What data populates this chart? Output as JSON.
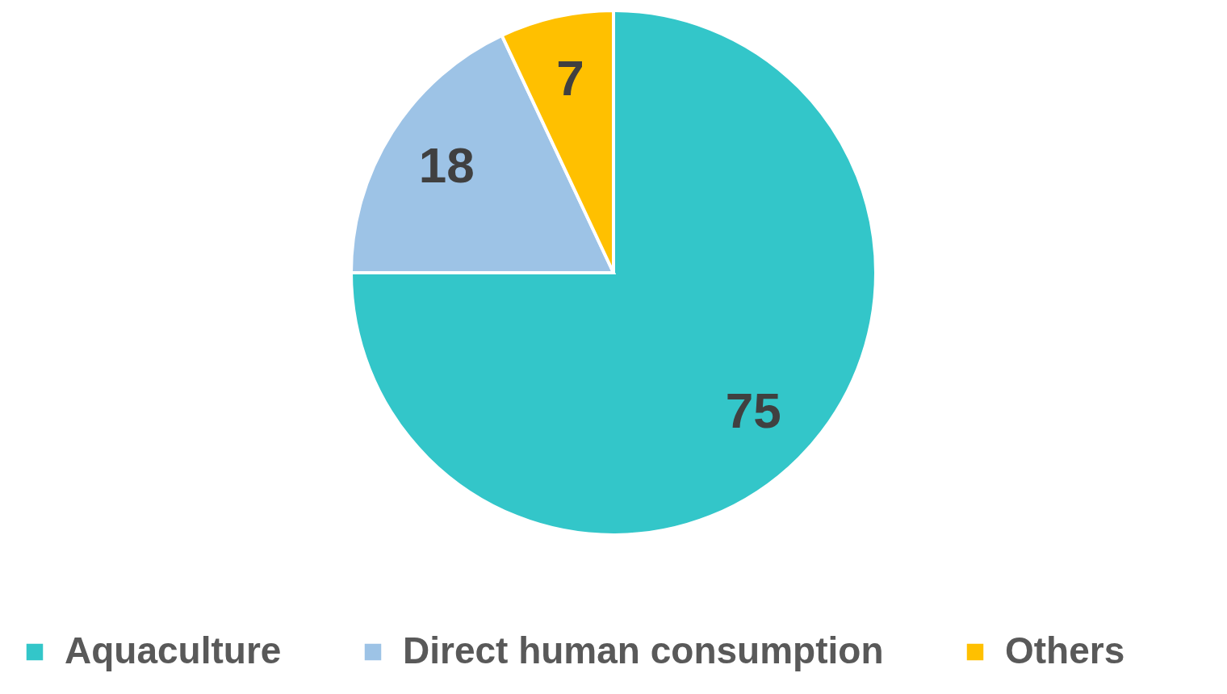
{
  "chart_data": {
    "type": "pie",
    "categories": [
      "Aquaculture",
      "Direct human consumption",
      "Others"
    ],
    "values": [
      75,
      18,
      7
    ],
    "colors": [
      "#33c6c9",
      "#9dc3e6",
      "#ffc000"
    ],
    "data_labels": true,
    "legend": "bottom"
  }
}
